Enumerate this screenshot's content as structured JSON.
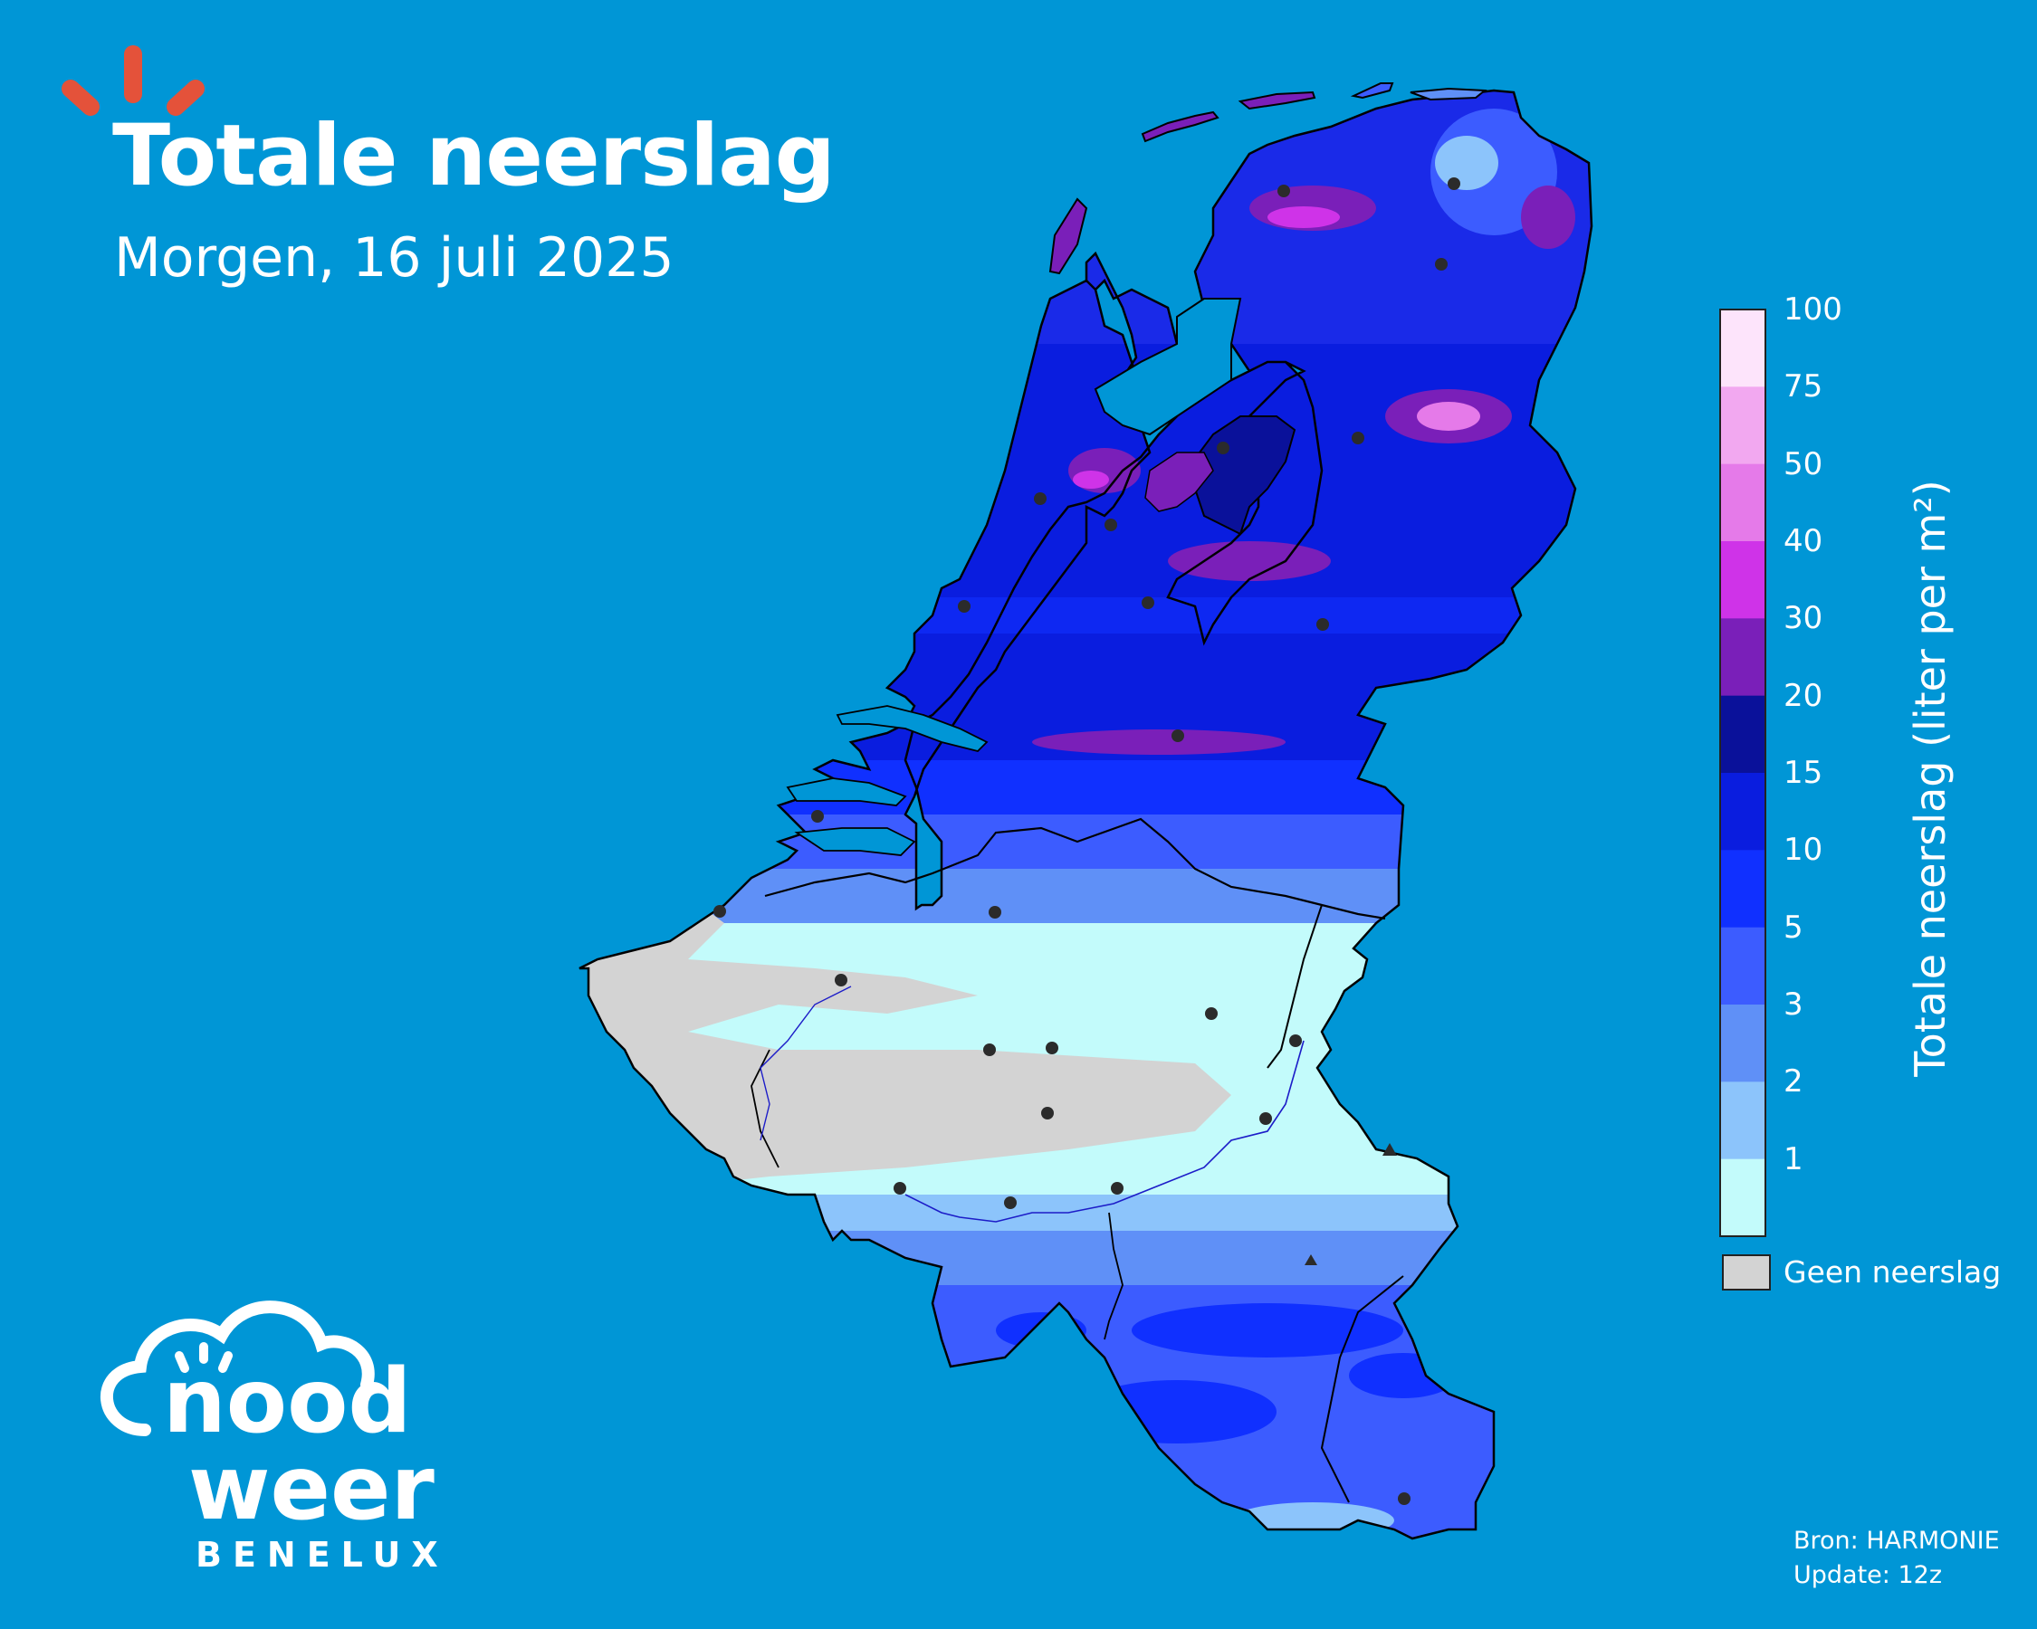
{
  "header": {
    "title": "Totale neerslag",
    "subtitle": "Morgen, 16 juli 2025"
  },
  "legend": {
    "title": "Totale neerslag (liter per m²)",
    "ticks": [
      "100",
      "75",
      "50",
      "40",
      "30",
      "20",
      "15",
      "10",
      "5",
      "3",
      "2",
      "1"
    ],
    "colors": [
      "#fde4fb",
      "#f2a8f0",
      "#e57ae9",
      "#cf33e8",
      "#7a1fb9",
      "#0a119a",
      "#0a1ddf",
      "#1030ff",
      "#3c5cff",
      "#5f90f7",
      "#8cc4fb",
      "#c3fbfb"
    ],
    "no_rain_label": "Geen neerslag",
    "no_rain_color": "#d3d3d3"
  },
  "brand": {
    "logo_word_1": "nood",
    "logo_word_2": "weer",
    "logo_sub": "BENELUX",
    "accent_color": "#e4523a"
  },
  "footer": {
    "source": "Bron: HARMONIE",
    "update": "Update: 12z"
  },
  "colors": {
    "background": "#0096d6",
    "border": "#000000",
    "city_marker": "#2b2b2b"
  }
}
